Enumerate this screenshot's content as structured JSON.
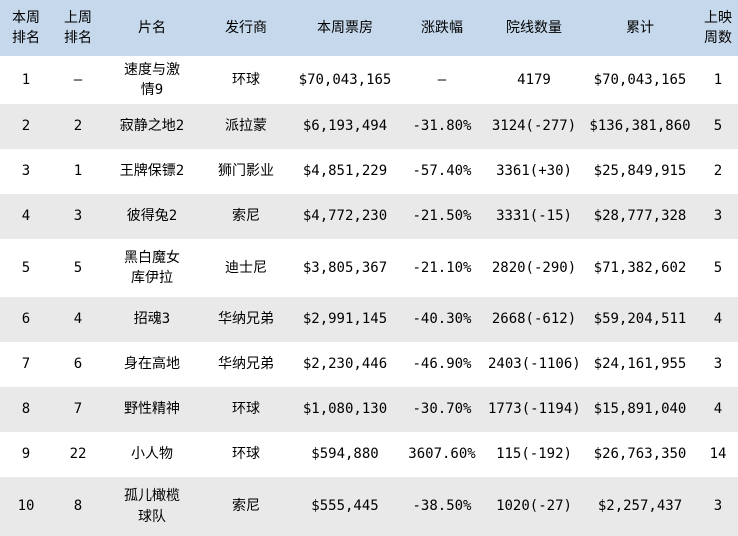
{
  "chart_data": {
    "type": "table",
    "columns": [
      "本周排名",
      "上周排名",
      "片名",
      "发行商",
      "本周票房",
      "涨跌幅",
      "院线数量",
      "累计",
      "上映周数"
    ],
    "rows": [
      [
        "1",
        "–",
        "速度与激情9",
        "环球",
        "$70,043,165",
        "–",
        "4179",
        "$70,043,165",
        "1"
      ],
      [
        "2",
        "2",
        "寂静之地2",
        "派拉蒙",
        "$6,193,494",
        "-31.80%",
        "3124(-277)",
        "$136,381,860",
        "5"
      ],
      [
        "3",
        "1",
        "王牌保镖2",
        "狮门影业",
        "$4,851,229",
        "-57.40%",
        "3361(+30)",
        "$25,849,915",
        "2"
      ],
      [
        "4",
        "3",
        "彼得兔2",
        "索尼",
        "$4,772,230",
        "-21.50%",
        "3331(-15)",
        "$28,777,328",
        "3"
      ],
      [
        "5",
        "5",
        "黑白魔女库伊拉",
        "迪士尼",
        "$3,805,367",
        "-21.10%",
        "2820(-290)",
        "$71,382,602",
        "5"
      ],
      [
        "6",
        "4",
        "招魂3",
        "华纳兄弟",
        "$2,991,145",
        "-40.30%",
        "2668(-612)",
        "$59,204,511",
        "4"
      ],
      [
        "7",
        "6",
        "身在高地",
        "华纳兄弟",
        "$2,230,446",
        "-46.90%",
        "2403(-1106)",
        "$24,161,955",
        "3"
      ],
      [
        "8",
        "7",
        "野性精神",
        "环球",
        "$1,080,130",
        "-30.70%",
        "1773(-1194)",
        "$15,891,040",
        "4"
      ],
      [
        "9",
        "22",
        "小人物",
        "环球",
        "$594,880",
        "3607.60%",
        "115(-192)",
        "$26,763,350",
        "14"
      ],
      [
        "10",
        "8",
        "孤儿橄榄球队",
        "索尼",
        "$555,445",
        "-38.50%",
        "1020(-27)",
        "$2,257,437",
        "3"
      ]
    ]
  },
  "colors": {
    "header_bg": "#c6d9ec",
    "alt_row_bg": "#e9e9e9",
    "text": "#000000"
  }
}
